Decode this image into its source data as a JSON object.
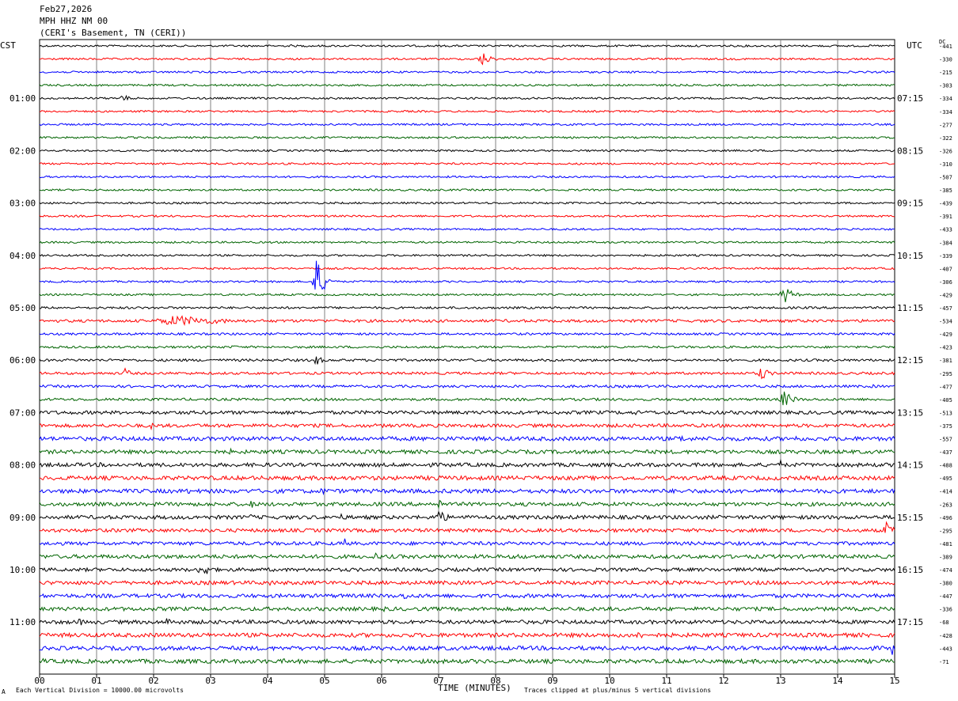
{
  "header": {
    "date": "Feb27,2026",
    "station": "MPH HHZ NM 00",
    "location": "(CERI's Basement, TN (CERI))"
  },
  "left_zone_label": "CST",
  "right_zone_label": "UTC",
  "dc_label": "DC",
  "footer": {
    "left_note": "Each Vertical Division = 10000.00 microvolts",
    "right_note": "Traces clipped at plus/minus 5 vertical divisions",
    "corner_mark": "A"
  },
  "colors": {
    "trace_cycle": [
      "#000000",
      "#ff0000",
      "#0000ff",
      "#006400"
    ],
    "grid": "#808080",
    "frame": "#000000"
  },
  "chart_data": {
    "type": "line",
    "chart_kind": "helicorder",
    "xlabel": "TIME (MINUTES)",
    "xlim": [
      0,
      15
    ],
    "x_ticks": [
      "00",
      "01",
      "02",
      "03",
      "04",
      "05",
      "06",
      "07",
      "08",
      "09",
      "10",
      "11",
      "12",
      "13",
      "14",
      "15"
    ],
    "grid": true,
    "trace_count": 48,
    "minutes_per_trace": 15,
    "left_hour_labels": [
      "01:00",
      "02:00",
      "03:00",
      "04:00",
      "05:00",
      "06:00",
      "07:00",
      "08:00",
      "09:00",
      "10:00",
      "11:00"
    ],
    "right_hour_labels": [
      "07:15",
      "08:15",
      "09:15",
      "10:15",
      "11:15",
      "12:15",
      "13:15",
      "14:15",
      "15:15",
      "16:15",
      "17:15"
    ],
    "dc_offsets": [
      -441,
      -330,
      -215,
      -303,
      -334,
      -334,
      -277,
      -322,
      -326,
      -310,
      -507,
      -385,
      -439,
      -391,
      -433,
      -384,
      -339,
      -407,
      -306,
      -429,
      -457,
      -534,
      -429,
      -423,
      -381,
      -295,
      -477,
      -405,
      -513,
      -375,
      -557,
      -437,
      -488,
      -495,
      -414,
      -263,
      -496,
      -295,
      -481,
      -389,
      -474,
      -380,
      -447,
      -336,
      -68,
      -428,
      -443,
      -71
    ],
    "noise_amplitude": [
      1.2,
      1.2,
      1.2,
      1.2,
      1.2,
      1.2,
      1.2,
      1.2,
      1.2,
      1.2,
      1.2,
      1.2,
      1.2,
      1.2,
      1.2,
      1.2,
      1.2,
      1.2,
      1.2,
      1.2,
      1.4,
      1.8,
      1.4,
      1.4,
      1.6,
      1.6,
      1.6,
      1.6,
      2.2,
      2.2,
      2.6,
      2.4,
      2.4,
      2.6,
      2.6,
      2.4,
      2.4,
      2.2,
      2.2,
      2.4,
      2.2,
      2.4,
      2.4,
      2.4,
      2.4,
      2.6,
      2.6,
      2.6
    ],
    "events": [
      {
        "trace": 0,
        "minute": 4.4,
        "amp": 2.5,
        "dur": 0.1
      },
      {
        "trace": 1,
        "minute": 7.75,
        "amp": 10,
        "dur": 0.3
      },
      {
        "trace": 2,
        "minute": 9.25,
        "amp": 2,
        "dur": 0.1
      },
      {
        "trace": 4,
        "minute": 1.45,
        "amp": 5,
        "dur": 0.3
      },
      {
        "trace": 18,
        "minute": 4.85,
        "amp": 32,
        "dur": 0.25
      },
      {
        "trace": 19,
        "minute": 13.05,
        "amp": 12,
        "dur": 0.3
      },
      {
        "trace": 21,
        "minute": 2.4,
        "amp": 7,
        "dur": 1.8
      },
      {
        "trace": 23,
        "minute": 3.4,
        "amp": 3,
        "dur": 0.2
      },
      {
        "trace": 24,
        "minute": 4.85,
        "amp": 8,
        "dur": 0.2
      },
      {
        "trace": 25,
        "minute": 1.5,
        "amp": 7,
        "dur": 0.2
      },
      {
        "trace": 25,
        "minute": 12.65,
        "amp": 9,
        "dur": 0.3
      },
      {
        "trace": 25,
        "minute": 13.05,
        "amp": 4,
        "dur": 0.1
      },
      {
        "trace": 26,
        "minute": 12.55,
        "amp": 4,
        "dur": 0.1
      },
      {
        "trace": 26,
        "minute": 14.6,
        "amp": 7,
        "dur": 0.05
      },
      {
        "trace": 27,
        "minute": 13.05,
        "amp": 11,
        "dur": 0.35
      },
      {
        "trace": 28,
        "minute": 10.45,
        "amp": 4,
        "dur": 0.15
      },
      {
        "trace": 28,
        "minute": 11.9,
        "amp": 4,
        "dur": 0.15
      },
      {
        "trace": 29,
        "minute": 1.95,
        "amp": 5,
        "dur": 0.15
      },
      {
        "trace": 30,
        "minute": 11.25,
        "amp": 6,
        "dur": 0.2
      },
      {
        "trace": 30,
        "minute": 13.25,
        "amp": 5,
        "dur": 0.2
      },
      {
        "trace": 31,
        "minute": 3.35,
        "amp": 4,
        "dur": 0.2
      },
      {
        "trace": 32,
        "minute": 1.05,
        "amp": 4,
        "dur": 0.1
      },
      {
        "trace": 32,
        "minute": 13.0,
        "amp": 6,
        "dur": 0.1
      },
      {
        "trace": 33,
        "minute": 6.95,
        "amp": 6,
        "dur": 0.2
      },
      {
        "trace": 34,
        "minute": 2.6,
        "amp": 6,
        "dur": 0.1
      },
      {
        "trace": 34,
        "minute": 4.95,
        "amp": 5,
        "dur": 0.3
      },
      {
        "trace": 35,
        "minute": 3.7,
        "amp": 8,
        "dur": 0.1
      },
      {
        "trace": 35,
        "minute": 7.0,
        "amp": 10,
        "dur": 0.1
      },
      {
        "trace": 36,
        "minute": 7.0,
        "amp": 12,
        "dur": 0.25
      },
      {
        "trace": 36,
        "minute": 7.45,
        "amp": 10,
        "dur": 0.05
      },
      {
        "trace": 36,
        "minute": 3.7,
        "amp": 5,
        "dur": 0.1
      },
      {
        "trace": 36,
        "minute": 5.3,
        "amp": 5,
        "dur": 0.2
      },
      {
        "trace": 37,
        "minute": 1.4,
        "amp": 6,
        "dur": 0.15
      },
      {
        "trace": 37,
        "minute": 14.85,
        "amp": 11,
        "dur": 0.25
      },
      {
        "trace": 38,
        "minute": 5.35,
        "amp": 7,
        "dur": 0.1
      },
      {
        "trace": 39,
        "minute": 5.9,
        "amp": 7,
        "dur": 0.15
      },
      {
        "trace": 39,
        "minute": 8.4,
        "amp": 4,
        "dur": 0.5
      },
      {
        "trace": 40,
        "minute": 2.85,
        "amp": 10,
        "dur": 0.35
      },
      {
        "trace": 41,
        "minute": 4.05,
        "amp": 5,
        "dur": 0.2
      },
      {
        "trace": 41,
        "minute": 5.05,
        "amp": 4,
        "dur": 0.1
      },
      {
        "trace": 42,
        "minute": 6.4,
        "amp": 6,
        "dur": 0.2
      },
      {
        "trace": 43,
        "minute": 6.05,
        "amp": 4,
        "dur": 0.15
      },
      {
        "trace": 44,
        "minute": 0.7,
        "amp": 6,
        "dur": 0.15
      },
      {
        "trace": 44,
        "minute": 2.25,
        "amp": 7,
        "dur": 0.25
      },
      {
        "trace": 45,
        "minute": 10.5,
        "amp": 8,
        "dur": 0.15
      },
      {
        "trace": 45,
        "minute": 8.45,
        "amp": 5,
        "dur": 0.1
      },
      {
        "trace": 46,
        "minute": 14.95,
        "amp": 10,
        "dur": 0.1
      },
      {
        "trace": 46,
        "minute": 2.65,
        "amp": 4,
        "dur": 0.15
      },
      {
        "trace": 47,
        "minute": 0.05,
        "amp": 6,
        "dur": 0.1
      },
      {
        "trace": 47,
        "minute": 4.3,
        "amp": 4,
        "dur": 0.15
      }
    ]
  }
}
